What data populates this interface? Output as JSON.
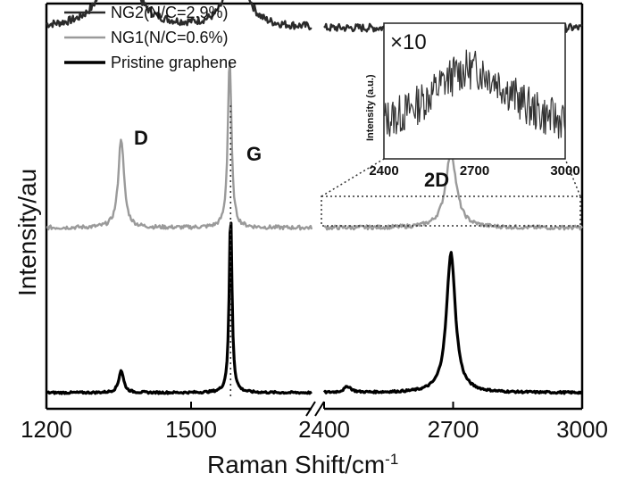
{
  "chart_data": {
    "type": "line",
    "xlabel": "Raman Shift/cm",
    "xlabel_superscript": "-1",
    "ylabel": "Intensity/au",
    "x_segments": [
      {
        "range": [
          1200,
          1750
        ],
        "ticks": [
          "1200",
          "1500"
        ]
      },
      {
        "range": [
          2400,
          3000
        ],
        "ticks": [
          "2400",
          "2700",
          "3000"
        ]
      }
    ],
    "axis_break": true,
    "y_ticks_shown": false,
    "legend": {
      "position": "top-left",
      "entries": [
        {
          "label": "NG2(N/C=2.9%)",
          "color": "#2a2a2a"
        },
        {
          "label": "NG1(N/C=0.6%)",
          "color": "#9a9a9a"
        },
        {
          "label": "Pristine graphene",
          "color": "#000000"
        }
      ]
    },
    "peak_labels": [
      "D",
      "G",
      "2D"
    ],
    "series": [
      {
        "name": "NG2(N/C=2.9%)",
        "color": "#2a2a2a",
        "baseline": 0.73,
        "peaks": [
          {
            "center": 1350,
            "height": 0.21,
            "width": 55
          },
          {
            "center": 1595,
            "height": 0.17,
            "width": 38
          }
        ],
        "peaks_2d": [],
        "noise": 0.008
      },
      {
        "name": "NG1(N/C=0.6%)",
        "color": "#9a9a9a",
        "baseline": 0.33,
        "peaks": [
          {
            "center": 1355,
            "height": 0.18,
            "width": 14
          },
          {
            "center": 1580,
            "height": 0.34,
            "width": 9
          }
        ],
        "peaks_2d": [
          {
            "center": 2695,
            "height": 0.15,
            "width": 30
          }
        ],
        "noise": 0.004
      },
      {
        "name": "Pristine graphene",
        "color": "#000000",
        "baseline": 0.0,
        "peaks": [
          {
            "center": 1355,
            "height": 0.045,
            "width": 12
          },
          {
            "center": 1582,
            "height": 0.36,
            "width": 7
          }
        ],
        "peaks_2d": [
          {
            "center": 2455,
            "height": 0.012,
            "width": 20
          },
          {
            "center": 2695,
            "height": 0.28,
            "width": 25
          }
        ],
        "noise": 0.002
      }
    ],
    "g_peak_marker_x": 1582,
    "inset": {
      "multiplier": "×10",
      "ylabel": "Intensity (a.u.)",
      "xlim": [
        2400,
        3000
      ],
      "ticks": [
        "2400",
        "2700",
        "3000"
      ],
      "series_center": 2690,
      "series_width": 170
    }
  }
}
